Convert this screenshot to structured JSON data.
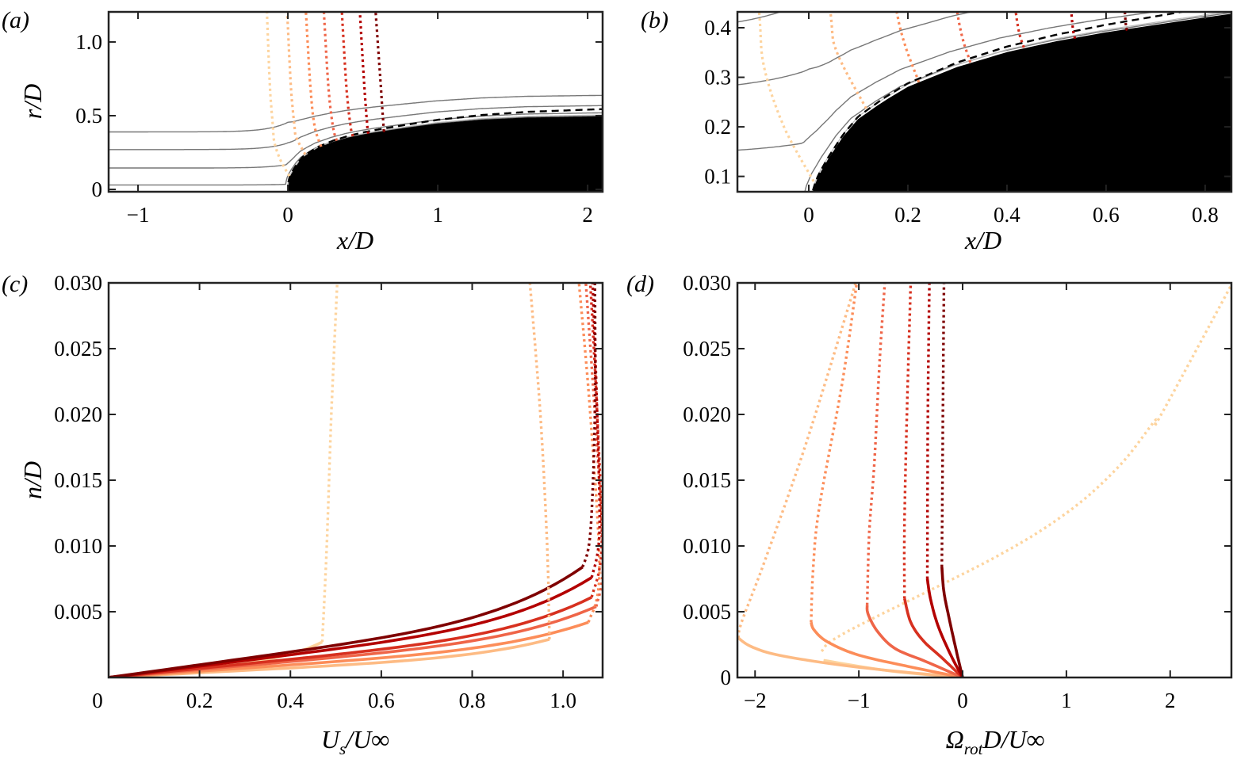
{
  "series_colors": [
    "#fdd49e",
    "#fdbb84",
    "#fc8d59",
    "#ef6548",
    "#d7301f",
    "#b30000",
    "#7f0000"
  ],
  "chart_data": [
    {
      "type": "line",
      "panel": "(a)",
      "xlabel_parts": [
        "x",
        "/",
        "D"
      ],
      "ylabel_parts": [
        "r",
        "/",
        "D"
      ],
      "xlim": [
        -1.196,
        2.1
      ],
      "ylim": [
        -0.016,
        1.204
      ],
      "xticks": [
        {
          "value": -1,
          "label": "−1"
        },
        {
          "value": 0,
          "label": "0"
        },
        {
          "value": 1,
          "label": "1"
        },
        {
          "value": 2,
          "label": "2"
        }
      ],
      "yticks": [
        {
          "value": 0,
          "label": "0"
        },
        {
          "value": 0.5,
          "label": "0.5"
        },
        {
          "value": 1.0,
          "label": "1.0"
        }
      ],
      "body_profile": {
        "x": [
          0,
          0.002,
          0.01,
          0.02,
          0.04,
          0.07,
          0.1,
          0.15,
          0.2,
          0.3,
          0.4,
          0.5,
          0.6,
          0.8,
          1.0,
          1.3,
          1.6,
          2.0,
          2.2
        ],
        "r": [
          0,
          0.04,
          0.075,
          0.1,
          0.135,
          0.18,
          0.215,
          0.25,
          0.28,
          0.32,
          0.35,
          0.372,
          0.39,
          0.42,
          0.448,
          0.475,
          0.49,
          0.497,
          0.5
        ]
      },
      "streamlines_r0": [
        0.39,
        0.27,
        0.145,
        0.03
      ],
      "wall_normal_lines": [
        [
          [
            0.01,
            0.09
          ],
          [
            -0.05,
            0.2
          ],
          [
            -0.09,
            0.32
          ],
          [
            -0.1,
            0.43
          ],
          [
            -0.12,
            0.7
          ],
          [
            -0.14,
            1.21
          ]
        ],
        [
          [
            0.116,
            0.237
          ],
          [
            0.057,
            0.35
          ],
          [
            0.044,
            0.43
          ],
          [
            0.02,
            0.7
          ],
          [
            -0.005,
            1.21
          ]
        ],
        [
          [
            0.222,
            0.29
          ],
          [
            0.178,
            0.43
          ],
          [
            0.15,
            0.7
          ],
          [
            0.12,
            1.21
          ]
        ],
        [
          [
            0.326,
            0.33
          ],
          [
            0.3,
            0.43
          ],
          [
            0.27,
            0.7
          ],
          [
            0.24,
            1.21
          ]
        ],
        [
          [
            0.434,
            0.36
          ],
          [
            0.418,
            0.43
          ],
          [
            0.39,
            0.7
          ],
          [
            0.36,
            1.21
          ]
        ],
        [
          [
            0.537,
            0.378
          ],
          [
            0.53,
            0.43
          ],
          [
            0.51,
            0.7
          ],
          [
            0.48,
            1.21
          ]
        ],
        [
          [
            0.642,
            0.397
          ],
          [
            0.638,
            0.43
          ],
          [
            0.62,
            0.7
          ],
          [
            0.585,
            1.21
          ]
        ]
      ]
    },
    {
      "type": "line",
      "panel": "(b)",
      "xlabel_parts": [
        "x",
        "/",
        "D"
      ],
      "xlim": [
        -0.144,
        0.853
      ],
      "ylim": [
        0.069,
        0.432
      ],
      "xticks": [
        {
          "value": 0,
          "label": "0"
        },
        {
          "value": 0.2,
          "label": "0.2"
        },
        {
          "value": 0.4,
          "label": "0.4"
        },
        {
          "value": 0.6,
          "label": "0.6"
        },
        {
          "value": 0.8,
          "label": "0.8"
        }
      ],
      "yticks": [
        {
          "value": 0.1,
          "label": "0.1"
        },
        {
          "value": 0.2,
          "label": "0.2"
        },
        {
          "value": 0.3,
          "label": "0.3"
        },
        {
          "value": 0.4,
          "label": "0.4"
        }
      ],
      "note": "zoom of panel (a) near the nose"
    },
    {
      "type": "line",
      "panel": "(c)",
      "xlabel_parts": [
        "U",
        "s",
        "/U∞"
      ],
      "ylabel_parts": [
        "n",
        "/",
        "D"
      ],
      "xlim": [
        0,
        1.087
      ],
      "ylim": [
        0,
        0.03
      ],
      "xticks": [
        {
          "value": 0,
          "label": "0"
        },
        {
          "value": 0.2,
          "label": "0.2"
        },
        {
          "value": 0.4,
          "label": "0.4"
        },
        {
          "value": 0.6,
          "label": "0.6"
        },
        {
          "value": 0.8,
          "label": "0.8"
        },
        {
          "value": 1.0,
          "label": "1.0"
        }
      ],
      "yticks": [
        {
          "value": 0.005,
          "label": "0.005"
        },
        {
          "value": 0.01,
          "label": "0.010"
        },
        {
          "value": 0.015,
          "label": "0.015"
        },
        {
          "value": 0.02,
          "label": "0.020"
        },
        {
          "value": 0.025,
          "label": "0.025"
        },
        {
          "value": 0.03,
          "label": "0.030"
        }
      ],
      "series": [
        {
          "solid_end": [
            0.47,
            0.0027
          ],
          "dotted": [
            [
              0.47,
              0.0027
            ],
            [
              0.48,
              0.01
            ],
            [
              0.49,
              0.02
            ],
            [
              0.503,
              0.03
            ]
          ]
        },
        {
          "solid_end": [
            0.97,
            0.0029
          ],
          "dotted": [
            [
              0.97,
              0.0029
            ],
            [
              0.965,
              0.01
            ],
            [
              0.95,
              0.02
            ],
            [
              0.927,
              0.03
            ]
          ]
        },
        {
          "solid_end": [
            1.056,
            0.0042
          ],
          "dotted": [
            [
              1.056,
              0.0042
            ],
            [
              1.08,
              0.008
            ],
            [
              1.06,
              0.02
            ],
            [
              1.035,
              0.03
            ]
          ]
        },
        {
          "solid_end": [
            1.073,
            0.0054
          ],
          "dotted": [
            [
              1.073,
              0.0054
            ],
            [
              1.088,
              0.009
            ],
            [
              1.07,
              0.02
            ],
            [
              1.05,
              0.03
            ]
          ]
        },
        {
          "solid_end": [
            1.063,
            0.0061
          ],
          "dotted": [
            [
              1.063,
              0.0061
            ],
            [
              1.085,
              0.01
            ],
            [
              1.075,
              0.02
            ],
            [
              1.06,
              0.03
            ]
          ]
        },
        {
          "solid_end": [
            1.063,
            0.0076
          ],
          "dotted": [
            [
              1.063,
              0.0076
            ],
            [
              1.08,
              0.011
            ],
            [
              1.075,
              0.02
            ],
            [
              1.065,
              0.03
            ]
          ]
        },
        {
          "solid_end": [
            1.043,
            0.0084
          ],
          "dotted": [
            [
              1.043,
              0.0084
            ],
            [
              1.06,
              0.011
            ],
            [
              1.07,
              0.02
            ],
            [
              1.07,
              0.03
            ]
          ]
        }
      ]
    },
    {
      "type": "line",
      "panel": "(d)",
      "xlabel_parts": [
        "Ω",
        "rot",
        "D/U∞"
      ],
      "xlim": [
        -2.17,
        2.59
      ],
      "ylim": [
        0,
        0.03
      ],
      "xticks": [
        {
          "value": -2,
          "label": "−2"
        },
        {
          "value": -1,
          "label": "−1"
        },
        {
          "value": 0,
          "label": "0"
        },
        {
          "value": 1,
          "label": "1"
        },
        {
          "value": 2,
          "label": "2"
        }
      ],
      "yticks": [
        {
          "value": 0,
          "label": "0"
        },
        {
          "value": 0.005,
          "label": "0.005"
        },
        {
          "value": 0.01,
          "label": "0.010"
        },
        {
          "value": 0.015,
          "label": "0.015"
        },
        {
          "value": 0.02,
          "label": "0.020"
        },
        {
          "value": 0.025,
          "label": "0.025"
        },
        {
          "value": 0.03,
          "label": "0.030"
        }
      ],
      "series": [
        {
          "solid": [
            [
              0,
              0
            ],
            [
              -0.7,
              0.0005
            ],
            [
              -1.34,
              0.0013
            ]
          ],
          "dotted": [
            [
              -1.36,
              0.002
            ],
            [
              -1.11,
              0.0035
            ],
            [
              0.28,
              0.009
            ],
            [
              1.0,
              0.0125
            ],
            [
              1.5,
              0.016
            ],
            [
              1.85,
              0.0195
            ],
            [
              1.9,
              0.0198
            ],
            [
              2.6,
              0.03
            ]
          ]
        },
        {
          "solid": [
            [
              0,
              0
            ],
            [
              -0.8,
              0.0006
            ],
            [
              -1.4,
              0.0012
            ],
            [
              -1.83,
              0.0018
            ],
            [
              -2.05,
              0.0024
            ],
            [
              -2.16,
              0.003
            ]
          ],
          "dotted": [
            [
              -2.16,
              0.003
            ],
            [
              -2.13,
              0.0042
            ],
            [
              -1.9,
              0.009
            ],
            [
              -1.5,
              0.018
            ],
            [
              -1.03,
              0.03
            ]
          ]
        },
        {
          "solid": [
            [
              0,
              0
            ],
            [
              -0.5,
              0.0008
            ],
            [
              -1.0,
              0.0017
            ],
            [
              -1.3,
              0.0027
            ],
            [
              -1.43,
              0.0036
            ],
            [
              -1.46,
              0.0042
            ]
          ],
          "dotted": [
            [
              -1.46,
              0.0042
            ],
            [
              -1.44,
              0.0083
            ],
            [
              -1.38,
              0.013
            ],
            [
              -1.16,
              0.0224
            ],
            [
              -1.02,
              0.03
            ]
          ]
        },
        {
          "solid": [
            [
              0,
              0
            ],
            [
              -0.35,
              0.0012
            ],
            [
              -0.65,
              0.0022
            ],
            [
              -0.82,
              0.0035
            ],
            [
              -0.91,
              0.0048
            ],
            [
              -0.92,
              0.0055
            ]
          ],
          "dotted": [
            [
              -0.92,
              0.0055
            ],
            [
              -0.9,
              0.011
            ],
            [
              -0.85,
              0.0164
            ],
            [
              -0.8,
              0.024
            ],
            [
              -0.75,
              0.03
            ]
          ]
        },
        {
          "solid": [
            [
              0,
              0
            ],
            [
              -0.2,
              0.0015
            ],
            [
              -0.38,
              0.0028
            ],
            [
              -0.5,
              0.0042
            ],
            [
              -0.56,
              0.006
            ]
          ],
          "dotted": [
            [
              -0.56,
              0.006
            ],
            [
              -0.56,
              0.012
            ],
            [
              -0.53,
              0.022
            ],
            [
              -0.5,
              0.03
            ]
          ]
        },
        {
          "solid": [
            [
              0,
              0
            ],
            [
              -0.12,
              0.0018
            ],
            [
              -0.24,
              0.004
            ],
            [
              -0.31,
              0.006
            ],
            [
              -0.34,
              0.0075
            ]
          ],
          "dotted": [
            [
              -0.34,
              0.0075
            ],
            [
              -0.335,
              0.02
            ],
            [
              -0.32,
              0.03
            ]
          ]
        },
        {
          "solid": [
            [
              0,
              0
            ],
            [
              -0.06,
              0.002
            ],
            [
              -0.13,
              0.0045
            ],
            [
              -0.18,
              0.0065
            ],
            [
              -0.2,
              0.0084
            ]
          ],
          "dotted": [
            [
              -0.2,
              0.0084
            ],
            [
              -0.19,
              0.02
            ],
            [
              -0.18,
              0.03
            ]
          ]
        }
      ]
    }
  ]
}
